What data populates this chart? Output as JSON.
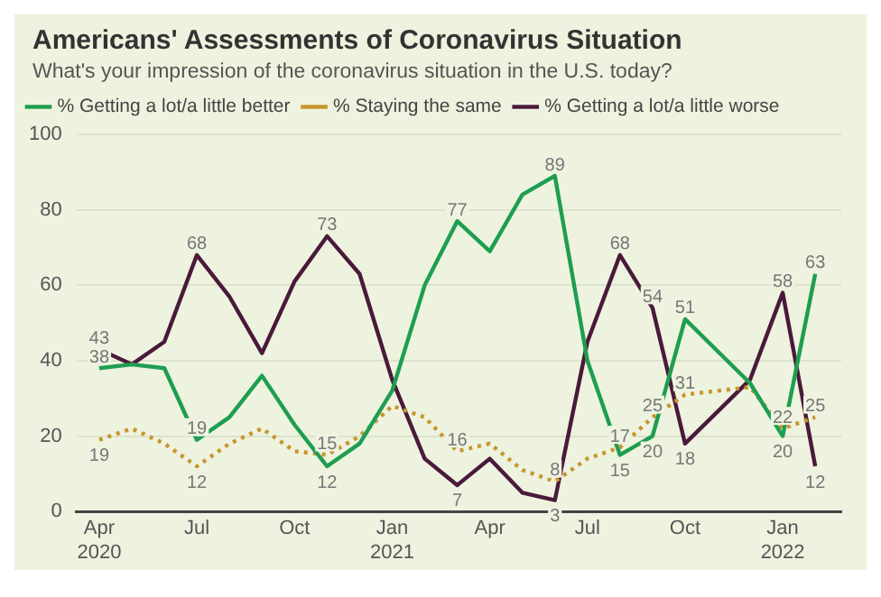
{
  "chart_data": {
    "type": "line",
    "title": "Americans' Assessments of Coronavirus Situation",
    "subtitle": "What's your impression of the coronavirus situation in the U.S. today?",
    "x": [
      "2020-04",
      "2020-05",
      "2020-06",
      "2020-07",
      "2020-08",
      "2020-09",
      "2020-10",
      "2020-11",
      "2020-12",
      "2021-01",
      "2021-02",
      "2021-03",
      "2021-04",
      "2021-05",
      "2021-06",
      "2021-07",
      "2021-08",
      "2021-09",
      "2021-10",
      "2021-12",
      "2022-01",
      "2022-02"
    ],
    "series": [
      {
        "name": "% Getting a lot/a little better",
        "color": "#1e9e50",
        "line_style": "solid",
        "values": [
          38,
          39,
          38,
          19,
          25,
          36,
          23,
          12,
          18,
          32,
          60,
          77,
          69,
          84,
          89,
          40,
          15,
          20,
          51,
          34,
          20,
          63
        ],
        "value_labels": [
          "38",
          null,
          null,
          "19",
          null,
          null,
          null,
          "12",
          null,
          null,
          null,
          "77",
          null,
          null,
          "89",
          null,
          "15",
          "20",
          "51",
          null,
          "20",
          "63"
        ]
      },
      {
        "name": "% Staying the same",
        "color": "#c8962e",
        "line_style": "dotted",
        "values": [
          19,
          22,
          18,
          12,
          18,
          22,
          16,
          15,
          20,
          28,
          25,
          16,
          18,
          11,
          8,
          14,
          17,
          25,
          31,
          33,
          22,
          25
        ],
        "value_labels": [
          "19",
          null,
          null,
          "12",
          null,
          null,
          null,
          "15",
          null,
          null,
          null,
          "16",
          null,
          null,
          "8",
          null,
          "17",
          "25",
          "31",
          null,
          "22",
          "25"
        ]
      },
      {
        "name": "% Getting a lot/a little worse",
        "color": "#4a1a3a",
        "line_style": "solid",
        "values": [
          43,
          39,
          45,
          68,
          57,
          42,
          61,
          73,
          63,
          35,
          14,
          7,
          14,
          5,
          3,
          45,
          68,
          54,
          18,
          35,
          58,
          12
        ],
        "value_labels": [
          "43",
          null,
          null,
          "68",
          null,
          null,
          null,
          "73",
          null,
          null,
          null,
          "7",
          null,
          null,
          "3",
          null,
          "68",
          "54",
          "18",
          null,
          "58",
          "12"
        ]
      }
    ],
    "xlim": [
      "2020-03-10",
      "2022-02-25"
    ],
    "xticks": [
      {
        "value": "2020-04",
        "label": "Apr 2020"
      },
      {
        "value": "2020-07",
        "label": "Jul"
      },
      {
        "value": "2020-10",
        "label": "Oct"
      },
      {
        "value": "2021-01",
        "label": "Jan 2021"
      },
      {
        "value": "2021-04",
        "label": "Apr"
      },
      {
        "value": "2021-07",
        "label": "Jul"
      },
      {
        "value": "2021-10",
        "label": "Oct"
      },
      {
        "value": "2022-01",
        "label": "Jan 2022"
      }
    ],
    "ylim": [
      0,
      100
    ],
    "yticks": [
      0,
      20,
      40,
      60,
      80,
      100
    ],
    "grid": "y",
    "legend": "top left",
    "marker": "none"
  }
}
